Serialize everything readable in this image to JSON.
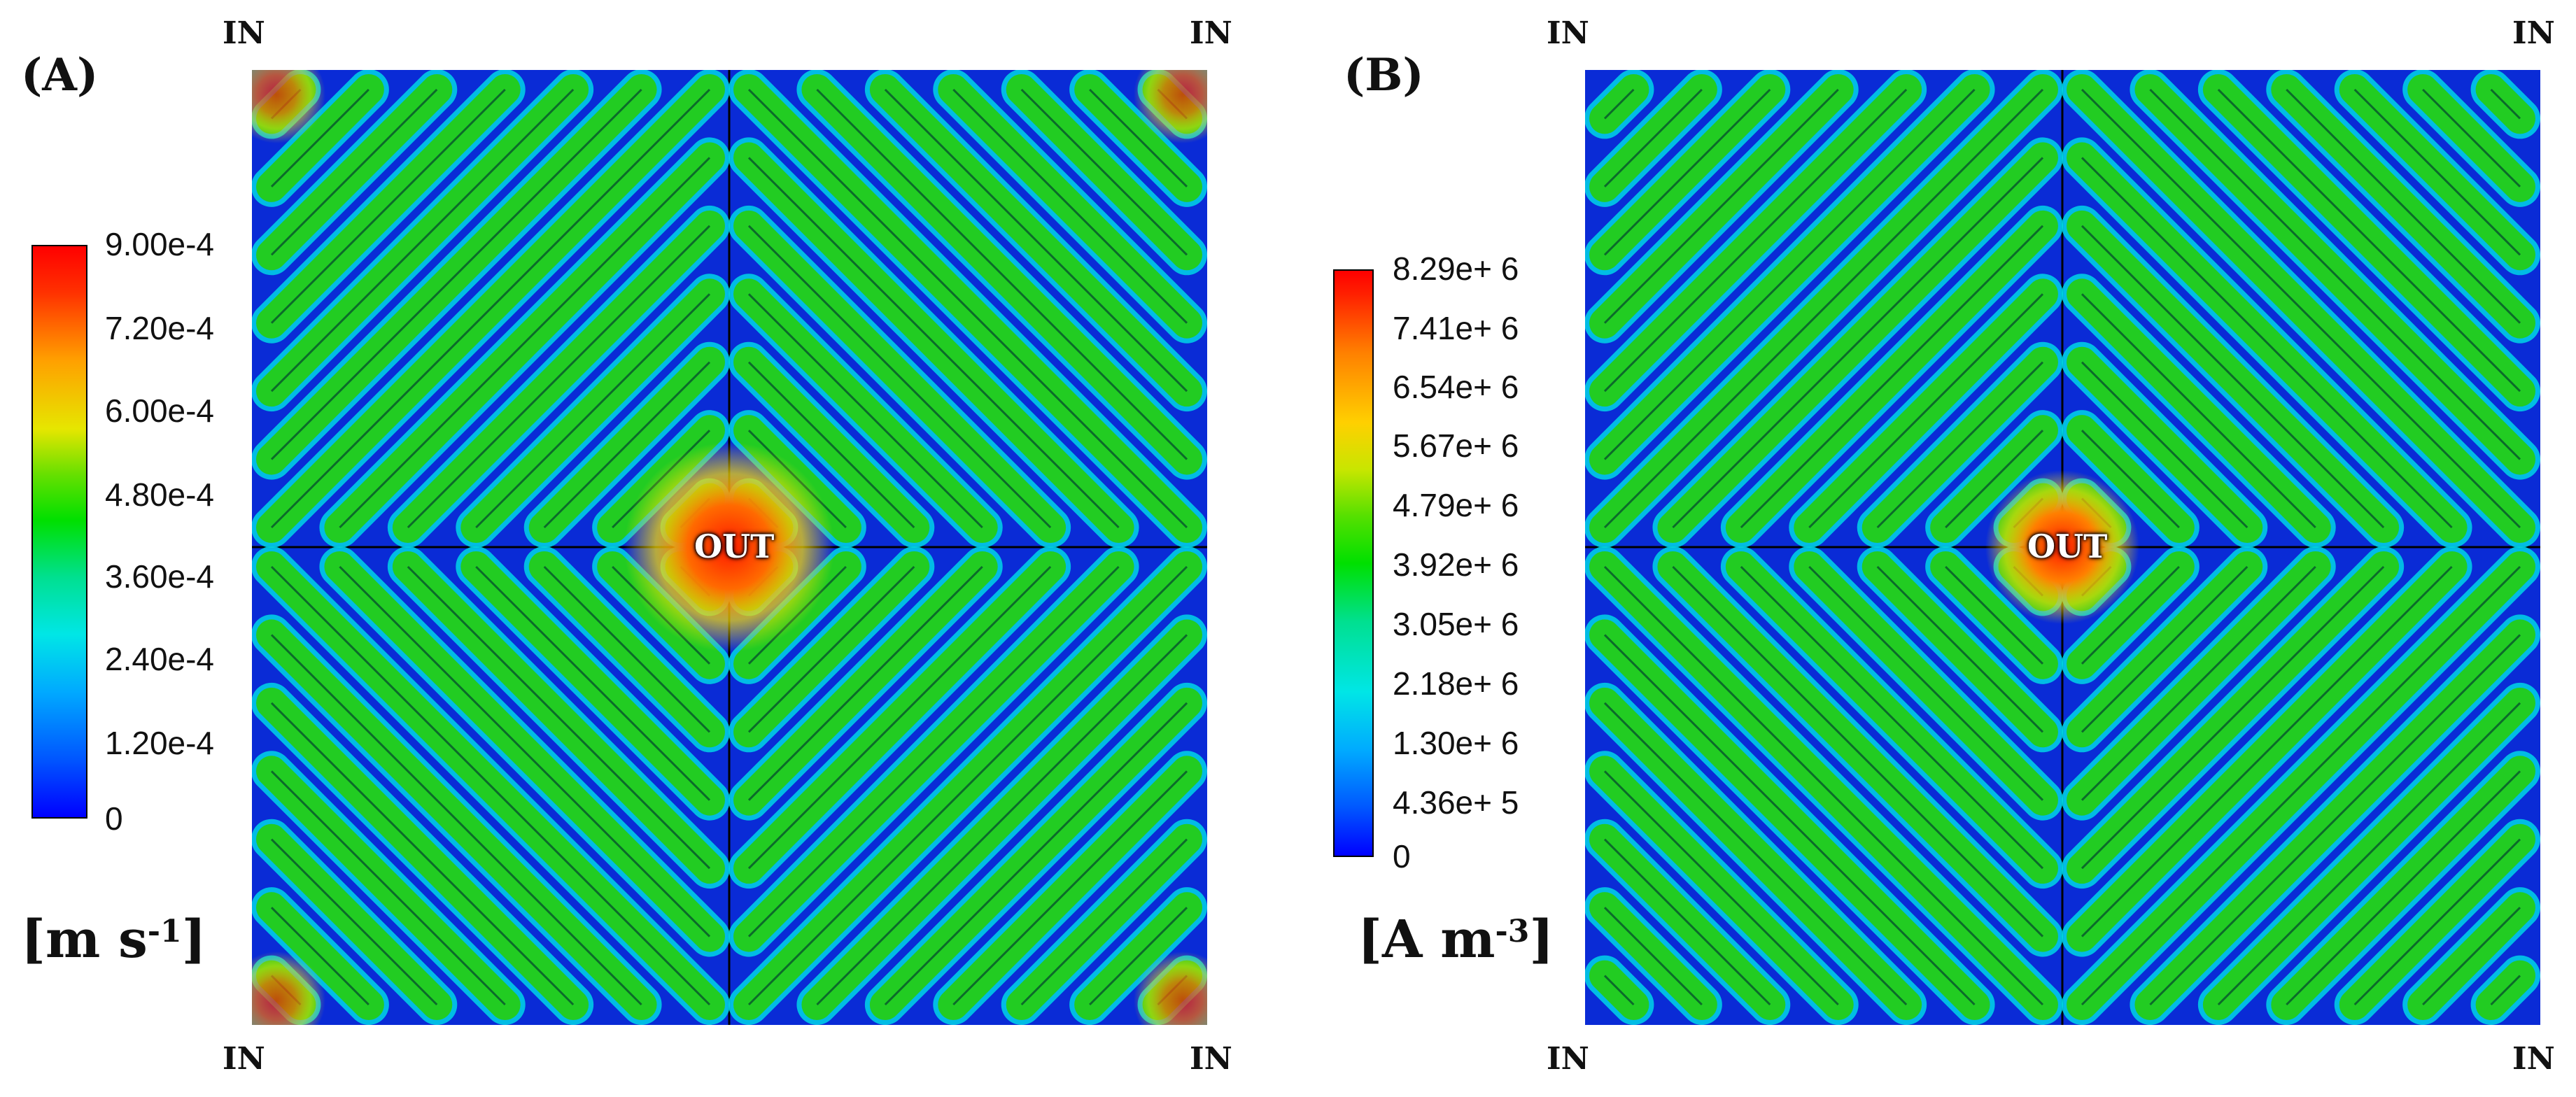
{
  "panels": [
    {
      "label": "(A)",
      "unit_base": "[m s",
      "unit_exp": "-1",
      "unit_end": "]",
      "colorbar_ticks": [
        "9.00e-4",
        "7.20e-4",
        "6.00e-4",
        "4.80e-4",
        "3.60e-4",
        "2.40e-4",
        "1.20e-4",
        "0"
      ],
      "center_label": "OUT",
      "corners": [
        "IN",
        "IN",
        "IN",
        "IN"
      ]
    },
    {
      "label": "(B)",
      "unit_base": "[A m",
      "unit_exp": "-3",
      "unit_end": "]",
      "colorbar_ticks": [
        "8.29e+ 6",
        "7.41e+ 6",
        "6.54e+ 6",
        "5.67e+ 6",
        "4.79e+ 6",
        "3.92e+ 6",
        "3.05e+ 6",
        "2.18e+ 6",
        "1.30e+ 6",
        "4.36e+ 5",
        "0"
      ],
      "center_label": "OUT",
      "corners": [
        "IN",
        "IN",
        "IN",
        "IN"
      ]
    }
  ],
  "colors": {
    "background_field": "#0a2bd6",
    "channel": "#22cc22",
    "channel_edge": "#00d6e8",
    "hotspot": "#ff1a00",
    "colormap": [
      "#0000ff",
      "#0066ff",
      "#00ccff",
      "#00e6a0",
      "#00e000",
      "#b0e000",
      "#ffe000",
      "#ff8000",
      "#ff0000"
    ]
  }
}
